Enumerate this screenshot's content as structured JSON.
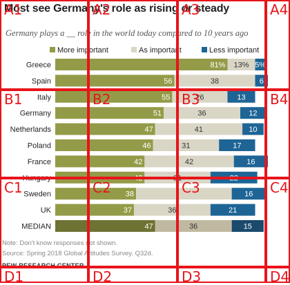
{
  "title": "Most see Germany's role as rising or steady",
  "subtitle": "Germany plays a __ role in the world today compared to 10 years ago",
  "note": "Note: Don't know responses not shown.",
  "source": "Source: Spring 2018 Global Attitudes Survey. Q32d.",
  "credit": "PEW RESEARCH CENTER",
  "chart_data": {
    "type": "bar",
    "stacked": true,
    "orientation": "horizontal",
    "categories": [
      "Greece",
      "Spain",
      "Italy",
      "Germany",
      "Netherlands",
      "Poland",
      "France",
      "Hungary",
      "Sweden",
      "UK",
      "MEDIAN"
    ],
    "series": [
      {
        "name": "More important",
        "color": "#949b48",
        "values": [
          81,
          56,
          55,
          51,
          47,
          46,
          42,
          42,
          38,
          37,
          47
        ],
        "labels": [
          "81%",
          "56",
          "55",
          "51",
          "47",
          "46",
          "42",
          "42",
          "38",
          "37",
          "47"
        ]
      },
      {
        "name": "As important",
        "color": "#dad6c6",
        "values": [
          13,
          38,
          26,
          36,
          41,
          31,
          42,
          31,
          45,
          36,
          36
        ],
        "labels": [
          "13%",
          "38",
          "26",
          "36",
          "41",
          "31",
          "42",
          "31",
          "",
          "36",
          "36"
        ]
      },
      {
        "name": "Less important",
        "color": "#1e6596",
        "values": [
          5,
          6,
          13,
          12,
          10,
          17,
          16,
          22,
          16,
          21,
          15
        ],
        "labels": [
          "5%",
          "6",
          "13",
          "12",
          "10",
          "17",
          "16",
          "22",
          "16",
          "21",
          "15"
        ]
      }
    ],
    "highlight_category": "MEDIAN",
    "highlight_colors": [
      "#6e7233",
      "#c0b9a1",
      "#1a4a6c"
    ],
    "legend_position": "top",
    "grid": false
  },
  "grid_overlay": {
    "color": "#e8141a",
    "labels": [
      "A1",
      "A2",
      "A3",
      "A4",
      "B1",
      "B2",
      "B3",
      "B4",
      "C1",
      "C2",
      "C3",
      "C4",
      "D1",
      "D2",
      "D3",
      "D4"
    ]
  }
}
